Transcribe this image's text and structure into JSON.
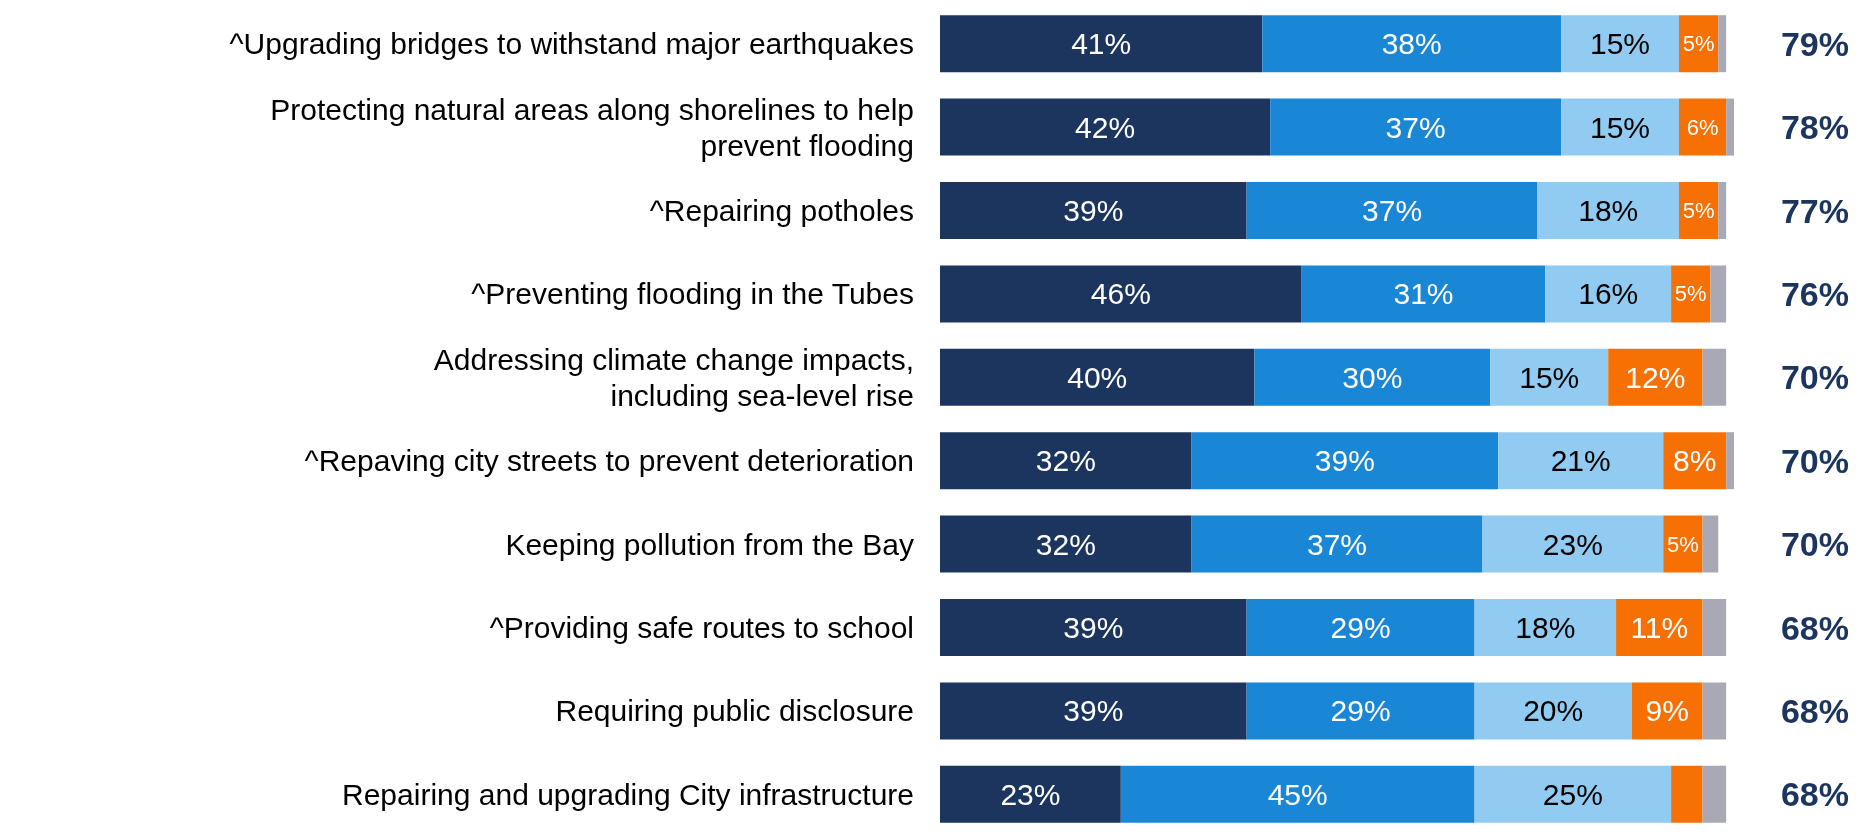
{
  "chart_data": {
    "type": "bar",
    "orientation": "horizontal",
    "stacked": true,
    "data_labels": false,
    "tick_labels": "y",
    "xlim": [
      0,
      101
    ],
    "categories": [
      "^Upgrading bridges to withstand major earthquakes",
      "Protecting natural areas along shorelines to help\nprevent flooding",
      "^Repairing potholes",
      "^Preventing flooding in the Tubes",
      "Addressing climate change impacts,\nincluding sea-level rise",
      "^Repaving city streets to prevent deterioration",
      "Keeping pollution from the Bay",
      "^Providing safe routes to school",
      "Requiring public disclosure",
      "Repairing and upgrading City infrastructure"
    ],
    "series": [
      {
        "color": "#1c355e",
        "values": [
          41,
          42,
          39,
          46,
          40,
          32,
          32,
          39,
          39,
          23
        ],
        "value_labels": [
          "41%",
          "42%",
          "39%",
          "46%",
          "40%",
          "32%",
          "32%",
          "39%",
          "39%",
          "23%"
        ]
      },
      {
        "color": "#1a86d6",
        "values": [
          38,
          37,
          37,
          31,
          30,
          39,
          37,
          29,
          29,
          45
        ],
        "value_labels": [
          "38%",
          "37%",
          "37%",
          "31%",
          "30%",
          "39%",
          "37%",
          "29%",
          "29%",
          "45%"
        ]
      },
      {
        "color": "#92cbf2",
        "values": [
          15,
          15,
          18,
          16,
          15,
          21,
          23,
          18,
          20,
          25
        ],
        "value_labels": [
          "15%",
          "15%",
          "18%",
          "16%",
          "15%",
          "21%",
          "23%",
          "18%",
          "20%",
          "25%"
        ]
      },
      {
        "color": "#f77004",
        "values": [
          5,
          6,
          5,
          5,
          12,
          8,
          5,
          11,
          9,
          4
        ],
        "value_labels": [
          "5%",
          "6%",
          "5%",
          "5%",
          "12%",
          "8%",
          "5%",
          "11%",
          "9%",
          null
        ]
      },
      {
        "color": "#a8a9b4",
        "values": [
          1,
          1,
          1,
          2,
          3,
          1,
          2,
          3,
          3,
          3
        ]
      }
    ],
    "annotations": [
      "79%",
      "78%",
      "77%",
      "76%",
      "70%",
      "70%",
      "70%",
      "68%",
      "68%",
      "68%"
    ]
  }
}
